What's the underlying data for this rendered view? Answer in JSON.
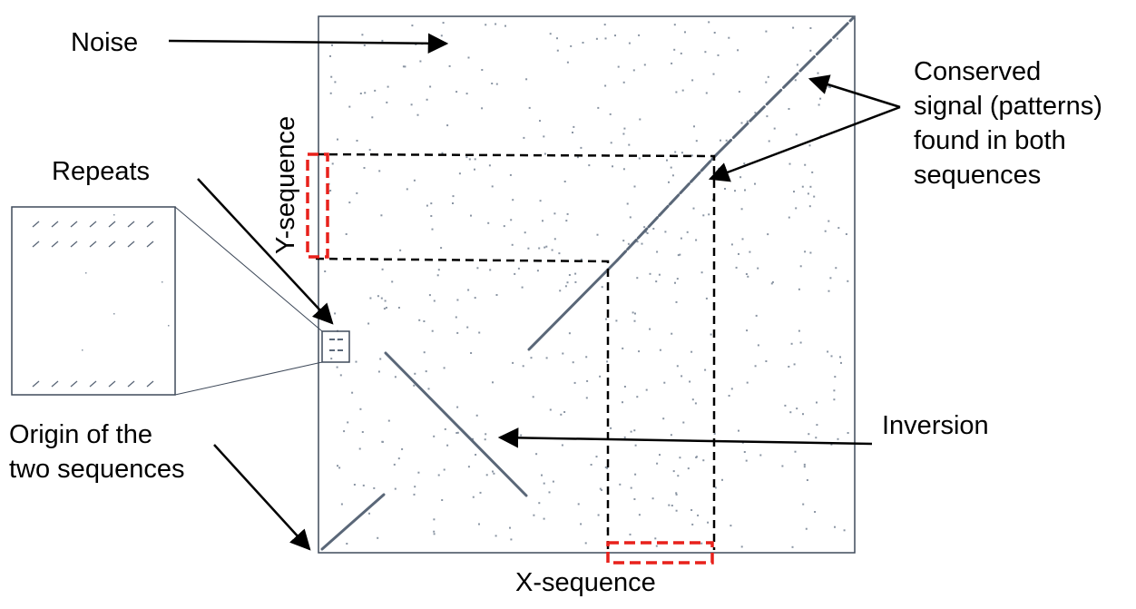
{
  "labels": {
    "noise": "Noise",
    "conserved": [
      "Conserved",
      "signal (patterns)",
      "found in both",
      "sequences"
    ],
    "repeats": "Repeats",
    "origin": [
      "Origin of the",
      "two sequences"
    ],
    "inversion": "Inversion",
    "x_axis": "X-sequence",
    "y_axis": "Y-sequence"
  },
  "colors": {
    "frame": "#3f4a5a",
    "signal": "#5a6778",
    "noise_dot": "#8a95a3",
    "arrow": "#000000",
    "highlight": "#e8211b"
  }
}
